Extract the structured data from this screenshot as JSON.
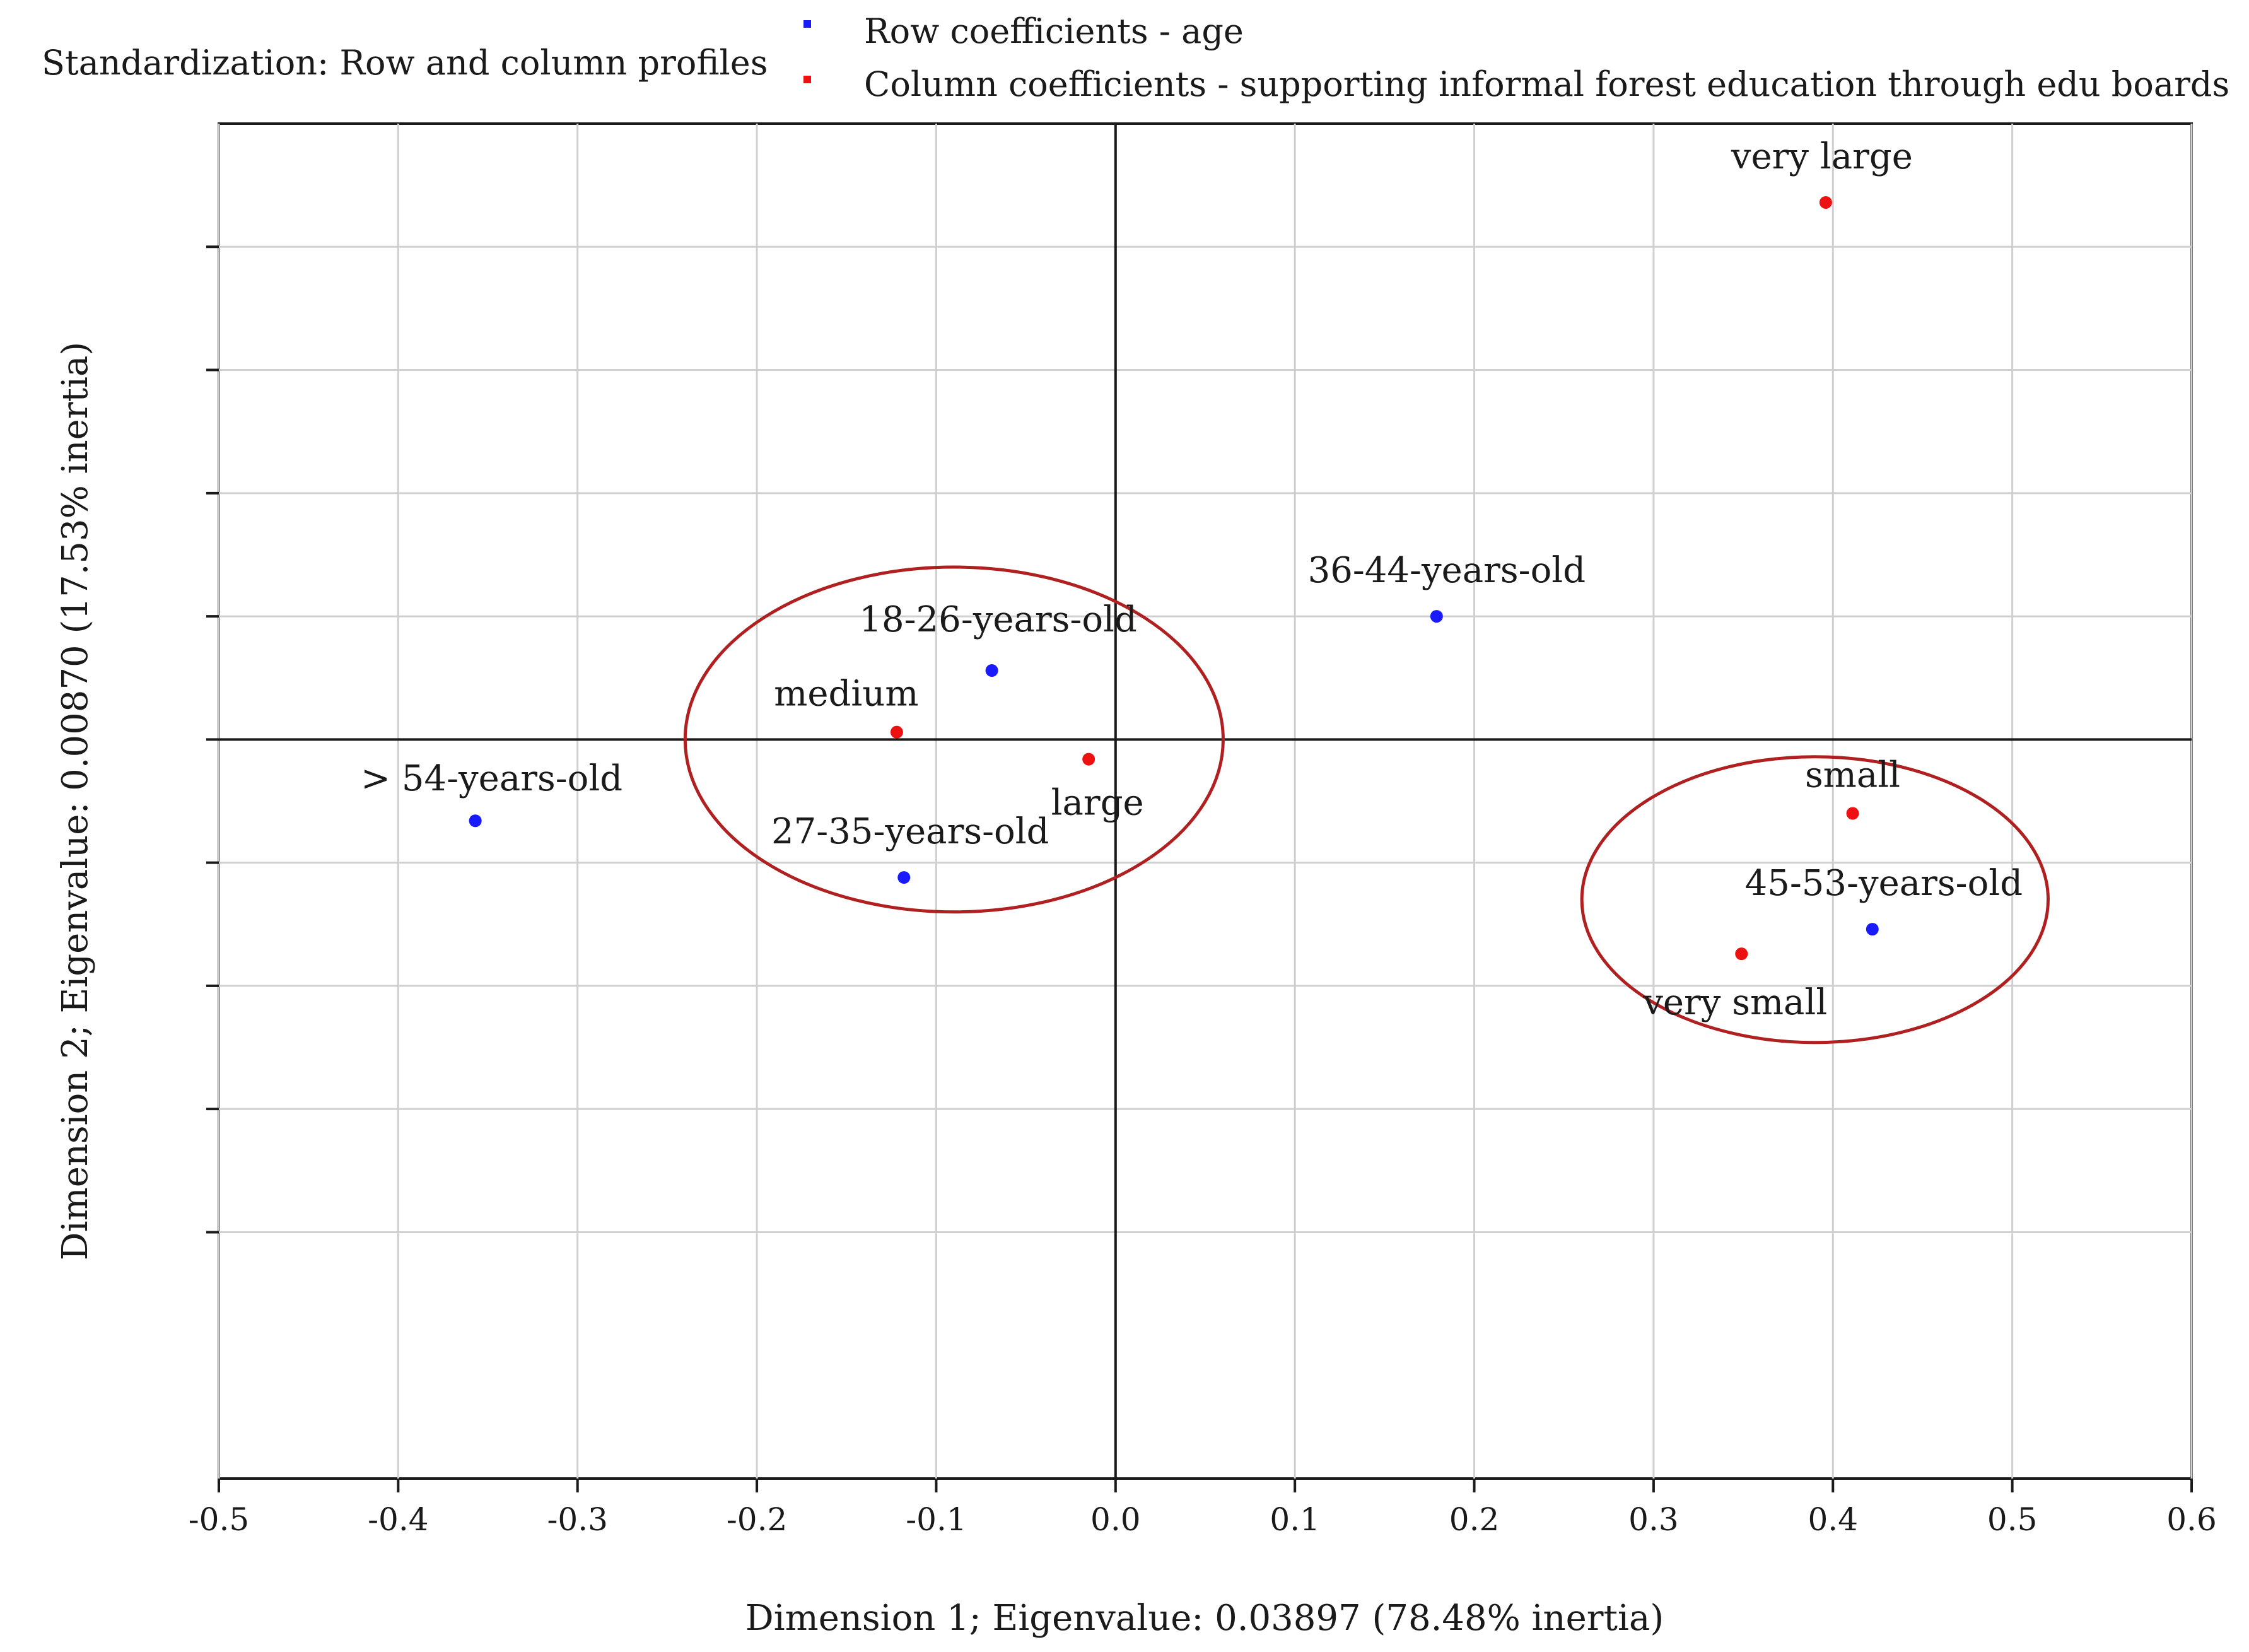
{
  "header": {
    "standardization": "Standardization: Row  and column profiles"
  },
  "chart_data": {
    "type": "scatter",
    "title": "",
    "xlabel": "Dimension 1; Eigenvalue: 0.03897 (78.48% inertia)",
    "ylabel": "Dimension 2; Eigenvalue: 0.00870 (17.53% inertia)",
    "xlim": [
      -0.5,
      0.6
    ],
    "ylim": [
      -0.3,
      0.25
    ],
    "xticks": [
      -0.5,
      -0.4,
      -0.3,
      -0.2,
      -0.1,
      0.0,
      0.1,
      0.2,
      0.3,
      0.4,
      0.5,
      0.6
    ],
    "xtick_labels": [
      "-0.5",
      "-0.4",
      "-0.3",
      "-0.2",
      "-0.1",
      "0.0",
      "0.1",
      "0.2",
      "0.3",
      "0.4",
      "0.5",
      "0.6"
    ],
    "yticks": [
      -0.2,
      -0.15,
      -0.1,
      -0.05,
      0.0,
      0.05,
      0.1,
      0.15,
      0.2
    ],
    "grid": true,
    "legend_position": "top",
    "series": [
      {
        "name": "Row  coefficients - age",
        "color": "#1a1aff",
        "points": [
          {
            "label": "18-26-years-old",
            "x": -0.069,
            "y": 0.028
          },
          {
            "label": "27-35-years-old",
            "x": -0.118,
            "y": -0.056
          },
          {
            "label": "36-44-years-old",
            "x": 0.179,
            "y": 0.05
          },
          {
            "label": "45-53-years-old",
            "x": 0.422,
            "y": -0.077
          },
          {
            "label": "> 54-years-old",
            "x": -0.357,
            "y": -0.033
          }
        ]
      },
      {
        "name": "Column coefficients - supporting informal forest education through edu boards",
        "color": "#ee1111",
        "points": [
          {
            "label": "very large",
            "x": 0.396,
            "y": 0.218
          },
          {
            "label": "medium",
            "x": -0.122,
            "y": 0.003
          },
          {
            "label": "large",
            "x": -0.015,
            "y": -0.008
          },
          {
            "label": "small",
            "x": 0.411,
            "y": -0.03
          },
          {
            "label": "very small",
            "x": 0.349,
            "y": -0.087
          }
        ]
      }
    ],
    "ellipses": [
      {
        "name": "cluster-center",
        "cx": -0.09,
        "cy": 0.0,
        "rx": 0.15,
        "ry": 0.07
      },
      {
        "name": "cluster-right",
        "cx": 0.39,
        "cy": -0.065,
        "rx": 0.13,
        "ry": 0.058
      }
    ],
    "ellipse_color": "#b02020"
  }
}
